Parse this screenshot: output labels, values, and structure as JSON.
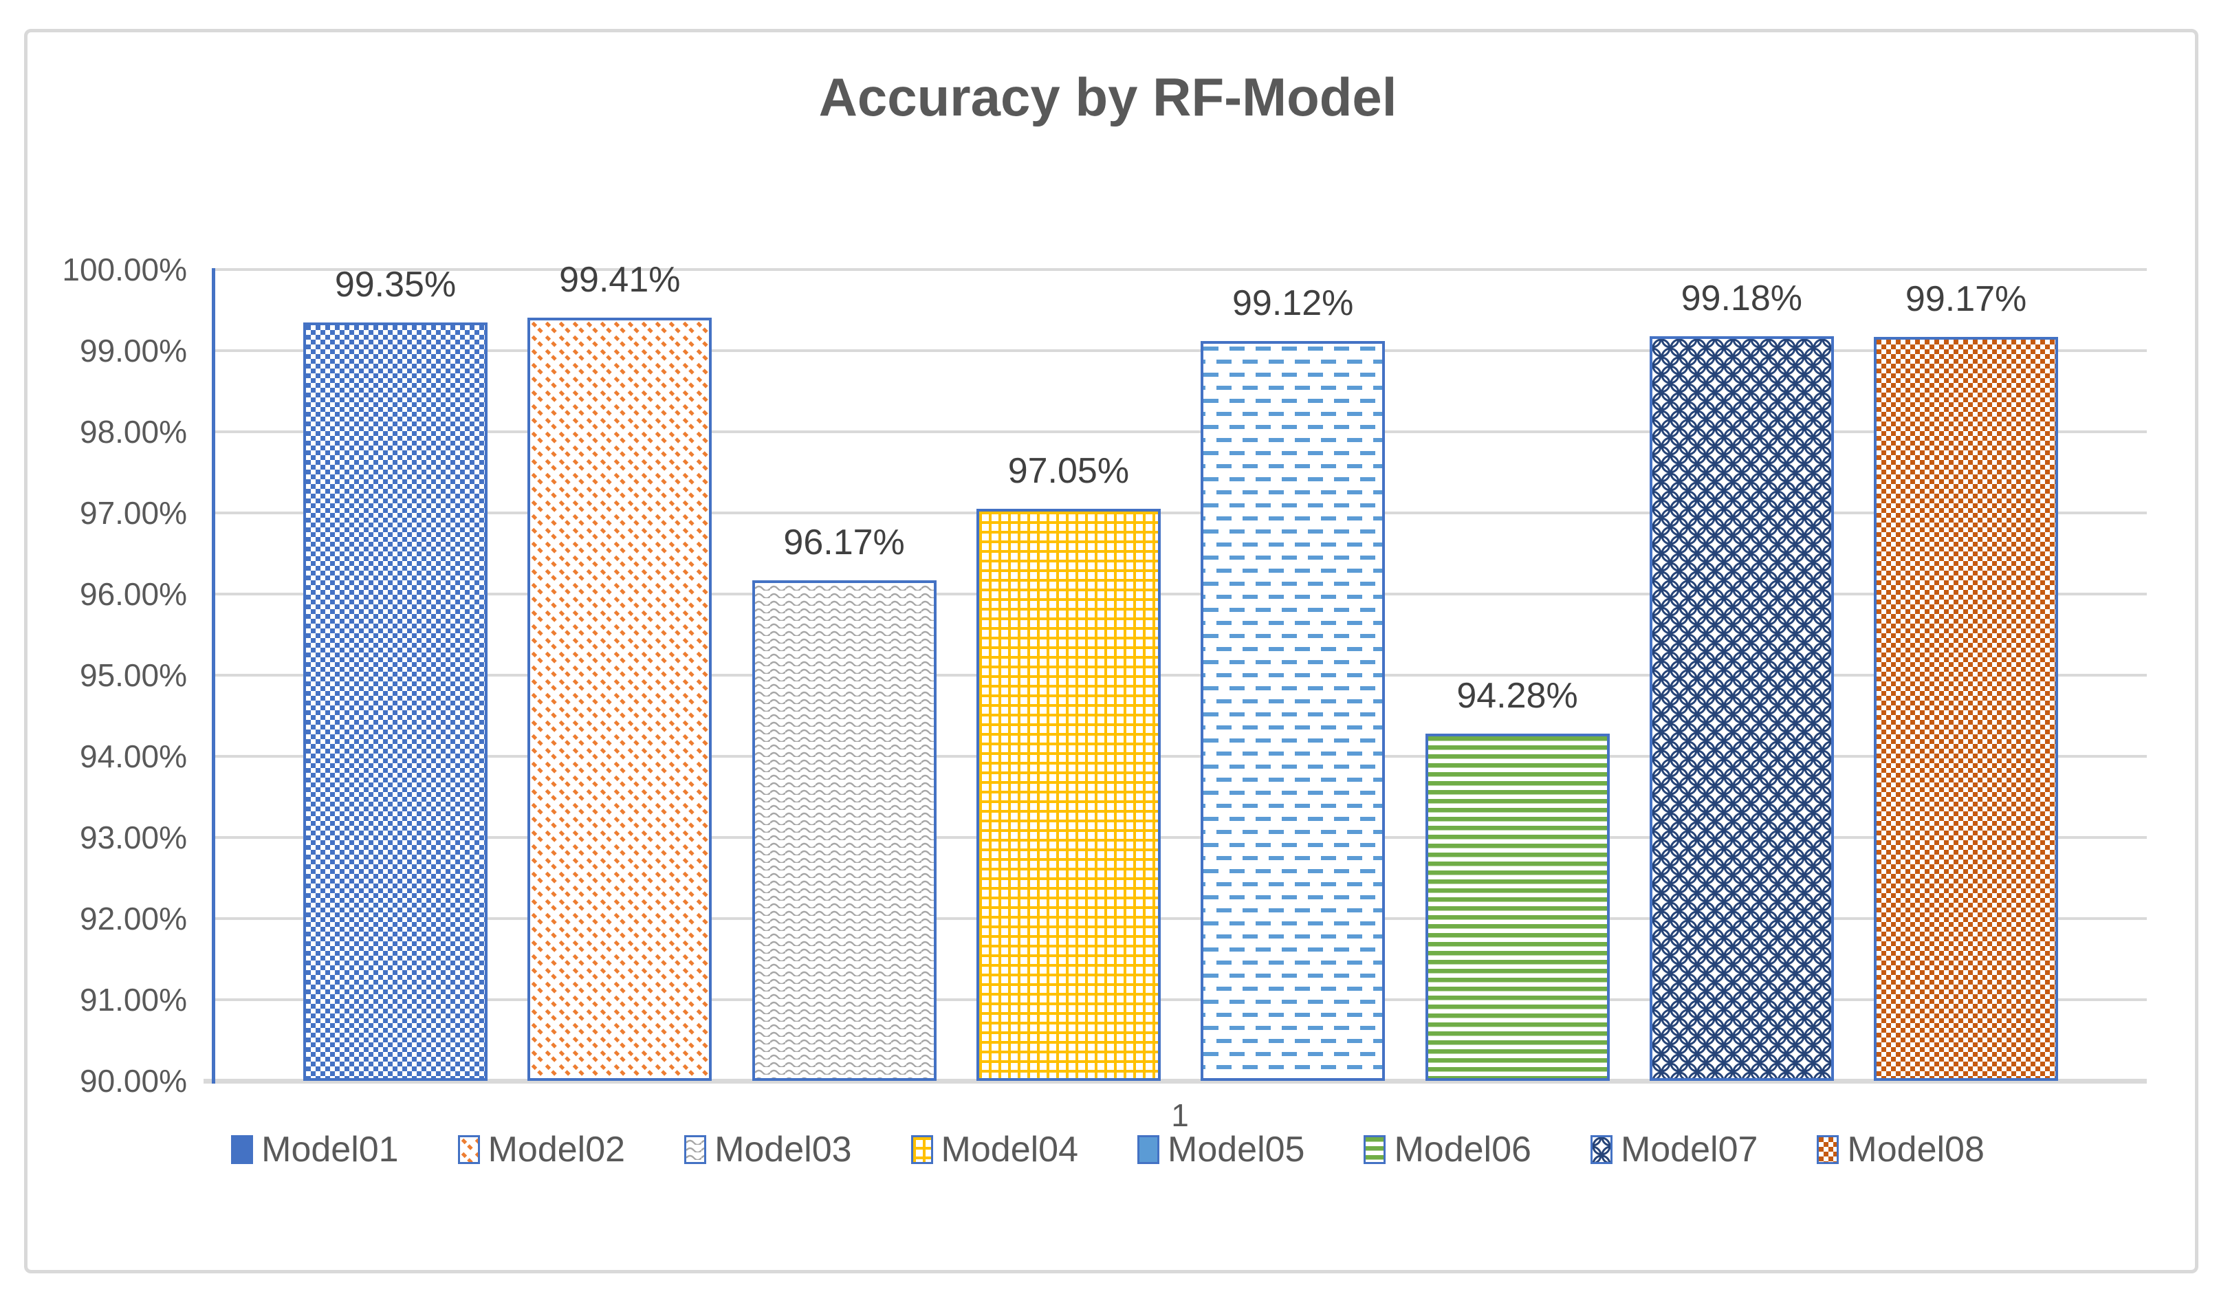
{
  "chart_data": {
    "type": "bar",
    "title": "Accuracy by RF-Model",
    "categories": [
      "1"
    ],
    "xlabel": "",
    "ylabel": "",
    "ylim_pct": [
      90.0,
      100.0
    ],
    "y_step_pct": 1.0,
    "grid": true,
    "legend_position": "bottom",
    "y_tick_labels": [
      "100.00%",
      "99.00%",
      "98.00%",
      "97.00%",
      "96.00%",
      "95.00%",
      "94.00%",
      "93.00%",
      "92.00%",
      "91.00%",
      "90.00%"
    ],
    "series": [
      {
        "name": "Model01",
        "value_pct": 99.35,
        "label": "99.35%",
        "color": "#4472C4",
        "pattern": "small-checker",
        "legend_swatch": "solid"
      },
      {
        "name": "Model02",
        "value_pct": 99.41,
        "label": "99.41%",
        "color": "#ED7D31",
        "pattern": "dashed-diagonal",
        "legend_swatch": "pattern"
      },
      {
        "name": "Model03",
        "value_pct": 96.17,
        "label": "96.17%",
        "color": "#A6A6A6",
        "pattern": "wave",
        "legend_swatch": "pattern"
      },
      {
        "name": "Model04",
        "value_pct": 97.05,
        "label": "97.05%",
        "color": "#FFC000",
        "pattern": "grid-weave",
        "legend_swatch": "pattern"
      },
      {
        "name": "Model05",
        "value_pct": 99.12,
        "label": "99.12%",
        "color": "#5B9BD5",
        "pattern": "dashed-horizontal",
        "legend_swatch": "solid"
      },
      {
        "name": "Model06",
        "value_pct": 94.28,
        "label": "94.28%",
        "color": "#70AD47",
        "pattern": "horizontal-stripe",
        "legend_swatch": "pattern"
      },
      {
        "name": "Model07",
        "value_pct": 99.18,
        "label": "99.18%",
        "color": "#264478",
        "pattern": "ring-lattice",
        "legend_swatch": "pattern"
      },
      {
        "name": "Model08",
        "value_pct": 99.17,
        "label": "99.17%",
        "color": "#C55A11",
        "pattern": "small-checker",
        "legend_swatch": "pattern"
      }
    ],
    "colors": {
      "bar_border": "#4472C4",
      "y_axis_line": "#4472C4",
      "gridline": "#D9D9D9",
      "x_axis_line": "#D9D9D9",
      "chart_border": "#D9D9D9",
      "title_text": "#595959",
      "axis_text": "#595959",
      "legend_text": "#595959",
      "data_label_text": "#404040",
      "background": "#FFFFFF"
    }
  }
}
